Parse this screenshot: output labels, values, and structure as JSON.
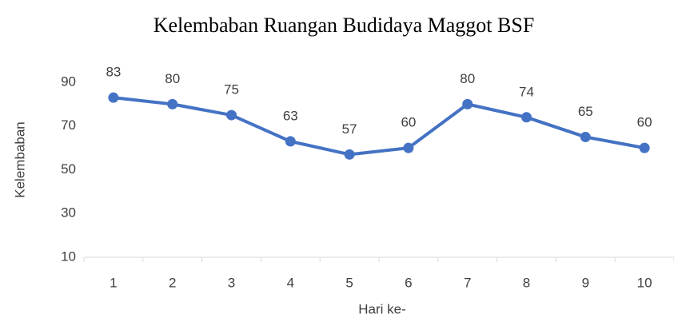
{
  "chart_data": {
    "type": "line",
    "title": "Kelembaban Ruangan Budidaya Maggot BSF",
    "x_label": "Hari ke-",
    "y_label": "Kelembaban",
    "categories": [
      "1",
      "2",
      "3",
      "4",
      "5",
      "6",
      "7",
      "8",
      "9",
      "10"
    ],
    "series": [
      {
        "name": "Kelembaban",
        "color": "#4472c4",
        "values": [
          83,
          80,
          75,
          63,
          57,
          60,
          80,
          74,
          65,
          60
        ]
      }
    ],
    "ylim": [
      10,
      90
    ],
    "yticks": [
      10,
      30,
      50,
      70,
      90
    ],
    "grid": false,
    "legend": false,
    "data_labels": true
  }
}
